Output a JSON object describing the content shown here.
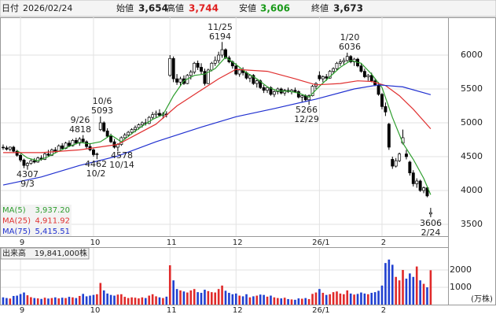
{
  "header": {
    "date_label": "日付",
    "date": "2026/02/24",
    "open_label": "始値",
    "open": "3,654",
    "high_label": "高値",
    "high": "3,744",
    "low_label": "安値",
    "low": "3,606",
    "close_label": "終値",
    "close": "3,673"
  },
  "chart_data": [
    {
      "type": "candlestick",
      "up_color": "#ffffff",
      "down_color": "#000000",
      "xlim": [
        -0.9,
        128
      ],
      "ylim": [
        3326,
        6558
      ],
      "yticks": [
        3500,
        4000,
        4500,
        5000,
        5500,
        6000
      ],
      "grid": true,
      "xticks": [
        {
          "value": 5,
          "label": "9"
        },
        {
          "value": 26,
          "label": "10"
        },
        {
          "value": 48,
          "label": "11"
        },
        {
          "value": 67,
          "label": "12"
        },
        {
          "value": 91,
          "label": "26/1"
        },
        {
          "value": 109,
          "label": "2"
        }
      ],
      "candles": [
        [
          4640,
          4680,
          4600,
          4630
        ],
        [
          4630,
          4660,
          4590,
          4610
        ],
        [
          4610,
          4650,
          4580,
          4640
        ],
        [
          4640,
          4660,
          4560,
          4580
        ],
        [
          4580,
          4600,
          4500,
          4520
        ],
        [
          4520,
          4540,
          4420,
          4450
        ],
        [
          4450,
          4470,
          4330,
          4370
        ],
        [
          4370,
          4420,
          4307,
          4400
        ],
        [
          4400,
          4460,
          4380,
          4440
        ],
        [
          4440,
          4480,
          4400,
          4420
        ],
        [
          4420,
          4500,
          4410,
          4480
        ],
        [
          4480,
          4520,
          4440,
          4460
        ],
        [
          4460,
          4560,
          4450,
          4540
        ],
        [
          4540,
          4600,
          4500,
          4520
        ],
        [
          4520,
          4620,
          4510,
          4600
        ],
        [
          4600,
          4640,
          4560,
          4580
        ],
        [
          4580,
          4680,
          4570,
          4660
        ],
        [
          4660,
          4700,
          4600,
          4620
        ],
        [
          4620,
          4720,
          4610,
          4700
        ],
        [
          4700,
          4740,
          4640,
          4660
        ],
        [
          4660,
          4760,
          4650,
          4740
        ],
        [
          4740,
          4780,
          4680,
          4700
        ],
        [
          4700,
          4790,
          4660,
          4760
        ],
        [
          4760,
          4818,
          4700,
          4720
        ],
        [
          4720,
          4740,
          4620,
          4650
        ],
        [
          4650,
          4700,
          4580,
          4600
        ],
        [
          4600,
          4620,
          4500,
          4530
        ],
        [
          4530,
          4560,
          4462,
          4540
        ],
        [
          4900,
          5093,
          4880,
          5000
        ],
        [
          5000,
          5020,
          4860,
          4880
        ],
        [
          4880,
          4920,
          4780,
          4800
        ],
        [
          4800,
          4840,
          4700,
          4720
        ],
        [
          4720,
          4760,
          4620,
          4640
        ],
        [
          4640,
          4700,
          4578,
          4680
        ],
        [
          4680,
          4800,
          4660,
          4780
        ],
        [
          4780,
          4850,
          4750,
          4820
        ],
        [
          4820,
          4880,
          4790,
          4860
        ],
        [
          4860,
          4920,
          4830,
          4900
        ],
        [
          4900,
          4960,
          4860,
          4930
        ],
        [
          4930,
          4990,
          4900,
          4970
        ],
        [
          4970,
          5020,
          4930,
          5000
        ],
        [
          5000,
          5060,
          4960,
          4990
        ],
        [
          4990,
          5100,
          4980,
          5080
        ],
        [
          5080,
          5160,
          5050,
          5120
        ],
        [
          5120,
          5180,
          5080,
          5140
        ],
        [
          5140,
          5200,
          5090,
          5110
        ],
        [
          5110,
          5160,
          5060,
          5130
        ],
        [
          5130,
          5170,
          5080,
          5120
        ],
        [
          5700,
          6000,
          5680,
          5950
        ],
        [
          5950,
          5980,
          5600,
          5650
        ],
        [
          5650,
          5720,
          5560,
          5600
        ],
        [
          5600,
          5680,
          5540,
          5650
        ],
        [
          5650,
          5700,
          5560,
          5580
        ],
        [
          5580,
          5720,
          5570,
          5700
        ],
        [
          5700,
          5780,
          5640,
          5750
        ],
        [
          5750,
          5900,
          5720,
          5880
        ],
        [
          5880,
          5920,
          5780,
          5820
        ],
        [
          5820,
          5880,
          5720,
          5760
        ],
        [
          5760,
          5800,
          5550,
          5580
        ],
        [
          5580,
          5800,
          5570,
          5780
        ],
        [
          5780,
          5900,
          5760,
          5880
        ],
        [
          5880,
          5980,
          5840,
          5920
        ],
        [
          5920,
          6050,
          5880,
          6000
        ],
        [
          6000,
          6194,
          5960,
          6080
        ],
        [
          6080,
          6100,
          5940,
          5960
        ],
        [
          5960,
          5990,
          5880,
          5900
        ],
        [
          5900,
          5920,
          5800,
          5840
        ],
        [
          5840,
          5880,
          5700,
          5720
        ],
        [
          5720,
          5800,
          5680,
          5780
        ],
        [
          5780,
          5820,
          5700,
          5740
        ],
        [
          5740,
          5760,
          5640,
          5660
        ],
        [
          5660,
          5720,
          5600,
          5700
        ],
        [
          5700,
          5720,
          5560,
          5580
        ],
        [
          5580,
          5640,
          5520,
          5620
        ],
        [
          5620,
          5640,
          5500,
          5520
        ],
        [
          5520,
          5560,
          5440,
          5480
        ],
        [
          5480,
          5540,
          5440,
          5520
        ],
        [
          5520,
          5540,
          5400,
          5420
        ],
        [
          5420,
          5480,
          5380,
          5460
        ],
        [
          5460,
          5520,
          5420,
          5500
        ],
        [
          5500,
          5520,
          5420,
          5440
        ],
        [
          5440,
          5500,
          5400,
          5480
        ],
        [
          5480,
          5520,
          5440,
          5460
        ],
        [
          5460,
          5500,
          5420,
          5480
        ],
        [
          5480,
          5520,
          5440,
          5460
        ],
        [
          5460,
          5480,
          5360,
          5380
        ],
        [
          5380,
          5420,
          5300,
          5400
        ],
        [
          5400,
          5420,
          5320,
          5340
        ],
        [
          5340,
          5420,
          5266,
          5400
        ],
        [
          5400,
          5560,
          5390,
          5540
        ],
        [
          5540,
          5600,
          5500,
          5580
        ],
        [
          5700,
          5760,
          5620,
          5650
        ],
        [
          5650,
          5700,
          5600,
          5680
        ],
        [
          5680,
          5720,
          5620,
          5660
        ],
        [
          5660,
          5780,
          5650,
          5760
        ],
        [
          5760,
          5820,
          5720,
          5800
        ],
        [
          5800,
          5900,
          5780,
          5880
        ],
        [
          5880,
          5940,
          5840,
          5900
        ],
        [
          5900,
          5960,
          5860,
          5920
        ],
        [
          5920,
          6036,
          5900,
          5980
        ],
        [
          5980,
          6000,
          5880,
          5900
        ],
        [
          5900,
          5960,
          5840,
          5940
        ],
        [
          5940,
          5960,
          5820,
          5840
        ],
        [
          5840,
          5880,
          5740,
          5760
        ],
        [
          5760,
          5800,
          5660,
          5680
        ],
        [
          5680,
          5720,
          5620,
          5700
        ],
        [
          5700,
          5740,
          5600,
          5620
        ],
        [
          5620,
          5650,
          5540,
          5560
        ],
        [
          5560,
          5600,
          5400,
          5420
        ],
        [
          5420,
          5440,
          5200,
          5240
        ],
        [
          5240,
          5300,
          5100,
          5160
        ],
        [
          4980,
          5000,
          4600,
          4640
        ],
        [
          4460,
          4500,
          4320,
          4360
        ],
        [
          4360,
          4480,
          4340,
          4440
        ],
        [
          4440,
          4560,
          4420,
          4540
        ],
        [
          4700,
          4900,
          4680,
          4780
        ],
        [
          4540,
          4600,
          4460,
          4500
        ],
        [
          4420,
          4440,
          4220,
          4260
        ],
        [
          4260,
          4300,
          4060,
          4100
        ],
        [
          4100,
          4180,
          4040,
          4140
        ],
        [
          4140,
          4160,
          3980,
          4000
        ],
        [
          4000,
          4060,
          3960,
          4040
        ],
        [
          4040,
          4060,
          3900,
          3920
        ],
        [
          3654,
          3744,
          3606,
          3673
        ]
      ],
      "series": [
        {
          "name": "MA(5)",
          "color": "#2e9e2e",
          "legend_value": "3,937.20",
          "x": [
            4,
            7,
            10,
            13,
            16,
            19,
            22,
            25,
            28,
            31,
            34,
            37,
            40,
            43,
            46,
            49,
            52,
            55,
            58,
            61,
            64,
            67,
            70,
            73,
            76,
            79,
            82,
            85,
            88,
            91,
            94,
            97,
            100,
            103,
            106,
            109,
            112,
            115,
            118,
            121,
            123
          ],
          "values": [
            4590,
            4480,
            4440,
            4500,
            4580,
            4650,
            4710,
            4690,
            4720,
            4820,
            4720,
            4840,
            4950,
            5050,
            5120,
            5400,
            5620,
            5700,
            5720,
            5800,
            5970,
            5860,
            5740,
            5650,
            5530,
            5470,
            5470,
            5440,
            5380,
            5540,
            5680,
            5820,
            5920,
            5880,
            5720,
            5520,
            5080,
            4700,
            4460,
            4180,
            3937.2
          ]
        },
        {
          "name": "MA(25)",
          "color": "#e03030",
          "legend_value": "4,911.92",
          "x": [
            0,
            11,
            22,
            33,
            44,
            50,
            56,
            62,
            67,
            76,
            84,
            90,
            97,
            102,
            106,
            110,
            114,
            118,
            123
          ],
          "values": [
            4560,
            4560,
            4600,
            4680,
            4980,
            5250,
            5450,
            5650,
            5790,
            5760,
            5650,
            5560,
            5580,
            5620,
            5610,
            5550,
            5400,
            5200,
            4911.92
          ]
        },
        {
          "name": "MA(75)",
          "color": "#2030d0",
          "legend_value": "5,415.51",
          "x": [
            0,
            11,
            22,
            33,
            44,
            56,
            67,
            78,
            90,
            101,
            108,
            115,
            123
          ],
          "values": [
            4080,
            4200,
            4370,
            4510,
            4720,
            4920,
            5090,
            5210,
            5350,
            5500,
            5560,
            5530,
            5415.51
          ]
        }
      ],
      "annotations": [
        {
          "date": "9/3",
          "price": 4307
        },
        {
          "date": "9/26",
          "price": 4818
        },
        {
          "date": "10/6",
          "price": 5093
        },
        {
          "date": "10/2",
          "price": 4462
        },
        {
          "date": "10/14",
          "price": 4578
        },
        {
          "date": "11/25",
          "price": 6194
        },
        {
          "date": "12/29",
          "price": 5266
        },
        {
          "date": "1/20",
          "price": 6036
        },
        {
          "date": "2/24",
          "price": 3606
        }
      ]
    },
    {
      "type": "bar",
      "title": "出来高",
      "total_label": "19,841,000株",
      "unit_label": "(万株)",
      "up_color": "#e02a2a",
      "down_color": "#2040d0",
      "xlim": [
        -0.9,
        128
      ],
      "ylim": [
        0,
        3270
      ],
      "yticks": [
        1000,
        2000
      ],
      "grid": true,
      "xticks": [
        {
          "value": 5,
          "label": "9"
        },
        {
          "value": 26,
          "label": "10"
        },
        {
          "value": 48,
          "label": "11"
        },
        {
          "value": 67,
          "label": "12"
        },
        {
          "value": 91,
          "label": "26/1"
        },
        {
          "value": 109,
          "label": "2"
        }
      ],
      "values": [
        420,
        380,
        350,
        500,
        520,
        610,
        700,
        540,
        430,
        380,
        360,
        330,
        400,
        350,
        380,
        420,
        360,
        400,
        380,
        450,
        420,
        380,
        500,
        620,
        480,
        520,
        560,
        600,
        1250,
        820,
        640,
        560,
        520,
        580,
        600,
        450,
        380,
        420,
        400,
        360,
        420,
        380,
        520,
        600,
        480,
        420,
        380,
        460,
        2270,
        1400,
        900,
        820,
        760,
        700,
        820,
        900,
        720,
        680,
        860,
        780,
        720,
        700,
        900,
        1100,
        800,
        680,
        600,
        640,
        520,
        480,
        600,
        420,
        480,
        520,
        580,
        560,
        460,
        520,
        420,
        380,
        360,
        400,
        320,
        300,
        280,
        360,
        340,
        380,
        320,
        620,
        700,
        900,
        680,
        560,
        600,
        720,
        760,
        640,
        600,
        820,
        640,
        580,
        620,
        700,
        640,
        600,
        680,
        720,
        800,
        1100,
        2400,
        2600,
        2300,
        1600,
        1400,
        2000,
        1500,
        1800,
        1600,
        2200,
        1400,
        1200,
        1000,
        1984
      ]
    }
  ]
}
